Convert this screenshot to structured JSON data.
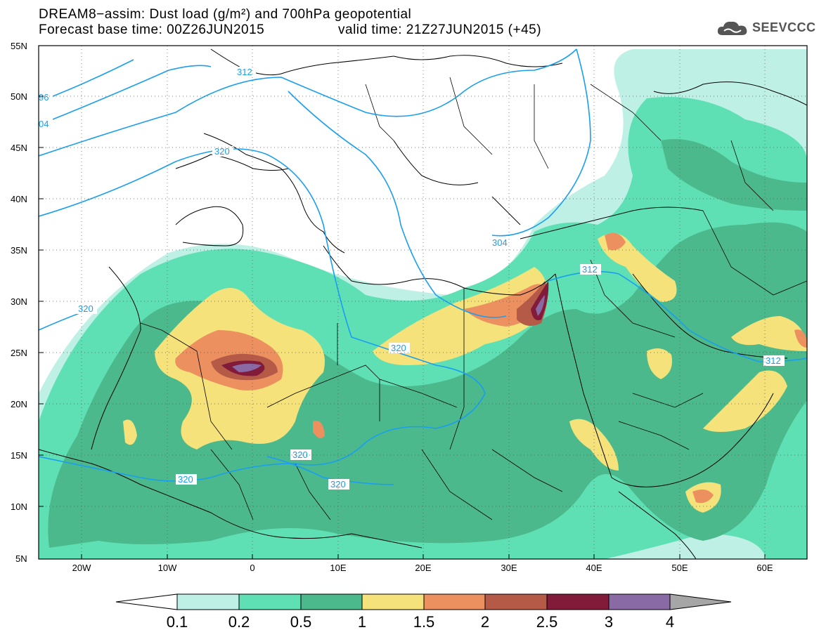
{
  "header": {
    "title_line1": "DREAM8−assim: Dust load (g/m²) and 700hPa geopotential",
    "title_line2": "Forecast base time: 00Z26JUN2015",
    "valid_time": "valid time: 21Z27JUN2015 (+45)",
    "logo_text": "SEEVCCC"
  },
  "map": {
    "lat_labels": [
      "55N",
      "50N",
      "45N",
      "40N",
      "35N",
      "30N",
      "25N",
      "20N",
      "15N",
      "10N",
      "5N"
    ],
    "lon_labels": [
      "20W",
      "10W",
      "0",
      "10E",
      "20E",
      "30E",
      "40E",
      "50E",
      "60E"
    ],
    "contour_labels": [
      {
        "text": "312"
      },
      {
        "text": "96"
      },
      {
        "text": "04"
      },
      {
        "text": "320"
      },
      {
        "text": "320"
      },
      {
        "text": "304"
      },
      {
        "text": "312"
      },
      {
        "text": "320"
      },
      {
        "text": "312"
      },
      {
        "text": "320"
      },
      {
        "text": "320"
      },
      {
        "text": "320"
      }
    ]
  },
  "colorbar": {
    "ticks": [
      "0.1",
      "0.2",
      "0.5",
      "1",
      "1.5",
      "2",
      "2.5",
      "3",
      "4"
    ],
    "colors": [
      "#bff0e6",
      "#5fe0b4",
      "#4cb98c",
      "#f5e27a",
      "#ec9060",
      "#b65a48",
      "#821a3a",
      "#8a6aa4",
      "#a6a6a6"
    ]
  }
}
